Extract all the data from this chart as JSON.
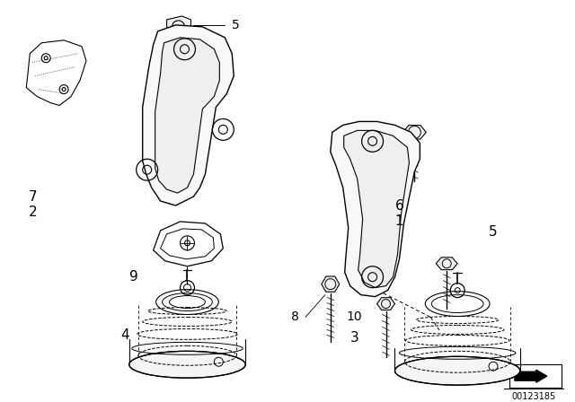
{
  "bg_color": "#ffffff",
  "line_color": "#000000",
  "fig_width": 6.4,
  "fig_height": 4.48,
  "dpi": 100,
  "watermark": "00123185"
}
